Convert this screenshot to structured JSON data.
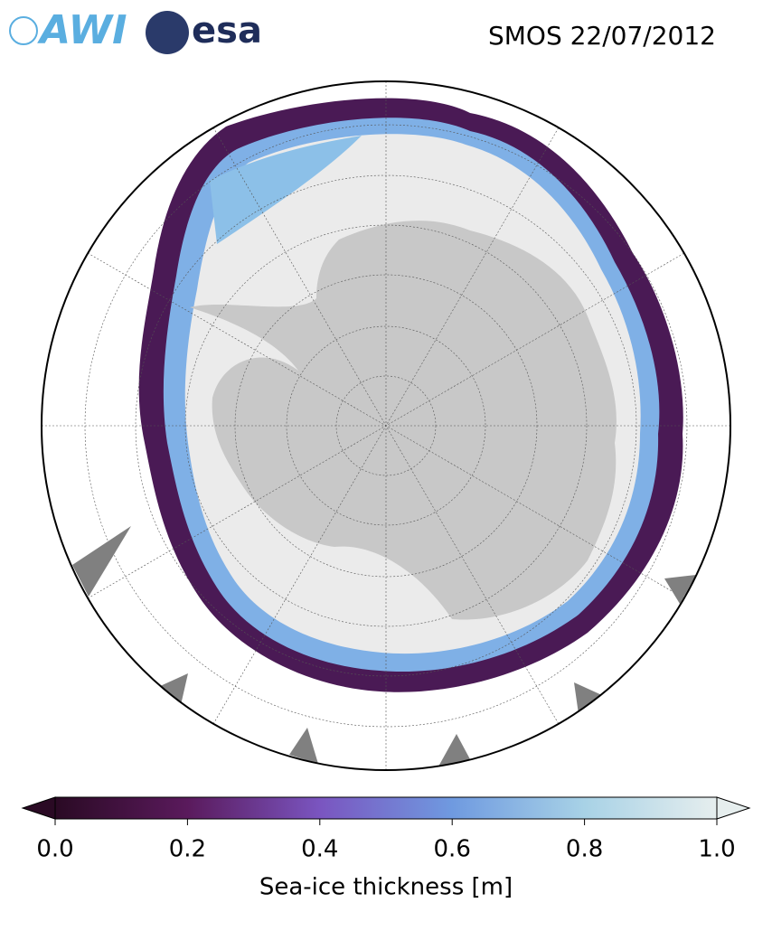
{
  "header": {
    "logos": [
      "AWI",
      "esa"
    ],
    "title": "SMOS 22/07/2012"
  },
  "colorbar": {
    "label": "Sea-ice thickness [m]",
    "lim": [
      0,
      1
    ],
    "ticks": [
      {
        "value": 0,
        "label": "0.0"
      },
      0.2,
      0.4,
      0.6,
      0.8,
      {
        "value": 1,
        "label": "1.0"
      }
    ],
    "colors": [
      "#2a0a24",
      "#5a1a5c",
      "#7a55c0",
      "#6f9ae0",
      "#a8d2e6",
      "#e6eeee"
    ]
  }
}
